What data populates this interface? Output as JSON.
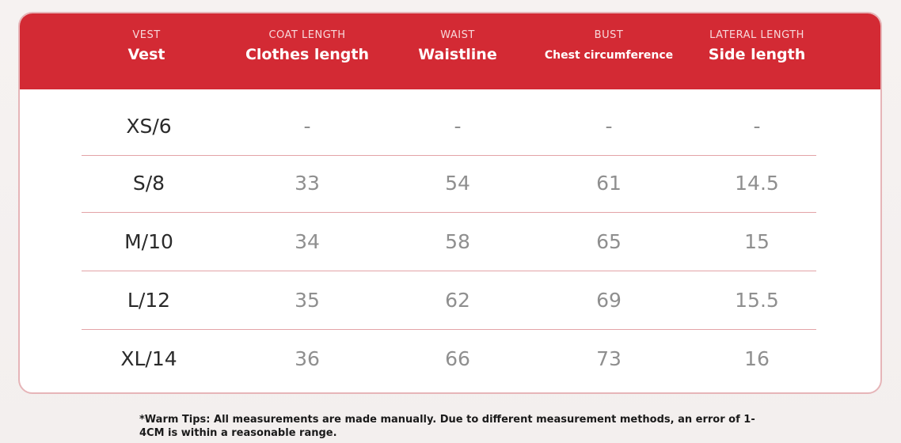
{
  "table": {
    "headers": [
      {
        "sub": "VEST",
        "main": "Vest"
      },
      {
        "sub": "COAT LENGTH",
        "main": "Clothes length"
      },
      {
        "sub": "WAIST",
        "main": "Waistline"
      },
      {
        "sub": "BUST",
        "main": "Chest circumference"
      },
      {
        "sub": "LATERAL LENGTH",
        "main": "Side length"
      }
    ],
    "rows": [
      {
        "size": "XS/6",
        "coat": "-",
        "waist": "-",
        "bust": "-",
        "side": "-"
      },
      {
        "size": "S/8",
        "coat": "33",
        "waist": "54",
        "bust": "61",
        "side": "14.5"
      },
      {
        "size": "M/10",
        "coat": "34",
        "waist": "58",
        "bust": "65",
        "side": "15"
      },
      {
        "size": "L/12",
        "coat": "35",
        "waist": "62",
        "bust": "69",
        "side": "15.5"
      },
      {
        "size": "XL/14",
        "coat": "36",
        "waist": "66",
        "bust": "73",
        "side": "16"
      }
    ]
  },
  "tips": "*Warm Tips: All measurements are made manually. Due to different measurement methods, an error of 1-4CM is within a reasonable range.",
  "colors": {
    "header_bg": "#d32a34",
    "divider": "#e3a3a7",
    "card_border": "#e6b5b8"
  }
}
